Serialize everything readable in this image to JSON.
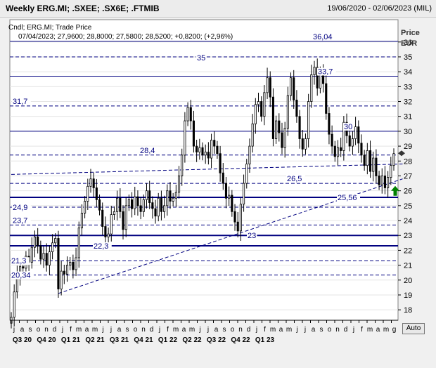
{
  "window": {
    "title": "Weekly ERG.MI; .SXEE; .SX6E; .FTMIB",
    "date_range": "19/06/2020 - 02/06/2023 (MIL)",
    "auto_label": "Auto"
  },
  "legend": {
    "line1": "Cndl; ERG.MI; Trade Price",
    "line2": "07/04/2023; 27,9600; 28,8000; 27,5800; 28,5200; +0,8200; (+2,96%)"
  },
  "colors": {
    "background": "#ffffff",
    "frame": "#f0f0f0",
    "price_line": "#000080",
    "candle": "#000000",
    "arrow": "#008000"
  },
  "chart_data": {
    "type": "candlestick",
    "ylabel": "Price\nEUR",
    "ylim": [
      17.3,
      37.5
    ],
    "yticks": [
      18,
      19,
      20,
      21,
      22,
      23,
      24,
      25,
      26,
      27,
      28,
      29,
      30,
      31,
      32,
      33,
      34,
      35,
      36
    ],
    "last_price": 28.52,
    "x_month_letters": [
      "j",
      "a",
      "s",
      "o",
      "n",
      "d",
      "j",
      "f",
      "m",
      "a",
      "m",
      "j",
      "j",
      "a",
      "s",
      "o",
      "n",
      "d",
      "j",
      "f",
      "m",
      "a",
      "m",
      "j",
      "j",
      "a",
      "s",
      "o",
      "n",
      "d",
      "j",
      "f",
      "m",
      "a",
      "m",
      "j",
      "j",
      "a",
      "s",
      "o",
      "n",
      "d",
      "j",
      "f",
      "m",
      "a",
      "m",
      "g"
    ],
    "quarters": [
      "Q3 20",
      "Q4 20",
      "Q1 21",
      "Q2 21",
      "Q3 21",
      "Q4 21",
      "Q1 22",
      "Q2 22",
      "Q3 22",
      "Q4 22",
      "Q1 23"
    ],
    "close": [
      17.5,
      19.2,
      20.3,
      20.9,
      20.8,
      21.6,
      21.2,
      22.2,
      22.9,
      22.3,
      21.4,
      21.8,
      21.0,
      21.9,
      22.5,
      22.8,
      19.4,
      20.6,
      20.4,
      21.0,
      21.2,
      20.7,
      21.5,
      23.5,
      24.5,
      25.3,
      26.3,
      26.8,
      26.2,
      25.4,
      24.7,
      23.6,
      22.9,
      23.1,
      24.4,
      24.6,
      25.5,
      24.6,
      23.4,
      25.0,
      25.4,
      24.8,
      25.6,
      25.0,
      24.6,
      25.4,
      26.0,
      25.2,
      24.8,
      24.3,
      25.5,
      24.6,
      25.0,
      26.0,
      25.3,
      25.5,
      25.9,
      27.0,
      28.4,
      30.7,
      31.6,
      30.7,
      29.0,
      28.6,
      28.9,
      28.4,
      28.6,
      28.2,
      29.4,
      29.0,
      28.5,
      27.2,
      26.5,
      25.5,
      25.7,
      24.6,
      23.9,
      23.3,
      25.1,
      26.5,
      27.8,
      29.0,
      30.5,
      31.8,
      32.0,
      31.0,
      32.6,
      33.6,
      32.3,
      29.5,
      30.7,
      29.9,
      28.9,
      30.2,
      32.4,
      33.6,
      32.1,
      31.0,
      29.5,
      28.8,
      29.5,
      32.0,
      33.8,
      34.3,
      32.9,
      34.0,
      33.2,
      31.2,
      29.8,
      29.0,
      28.3,
      28.9,
      28.7,
      30.6,
      29.7,
      29.0,
      29.5,
      30.3,
      29.2,
      28.4,
      27.7,
      28.7,
      27.3,
      28.2,
      27.0,
      26.4,
      27.0,
      26.2,
      26.9,
      27.7,
      28.5
    ],
    "annotations": [
      {
        "label": "36,04",
        "value": 36.04
      },
      {
        "label": "35",
        "value": 35.0
      },
      {
        "label": "33,7",
        "value": 33.7
      },
      {
        "label": "31,7",
        "value": 31.7
      },
      {
        "label": "30",
        "value": 30.0
      },
      {
        "label": "28,4",
        "value": 28.4
      },
      {
        "label": "26,5",
        "value": 26.5
      },
      {
        "label": "25,56",
        "value": 25.56
      },
      {
        "label": "24,9",
        "value": 24.9
      },
      {
        "label": "23,7",
        "value": 23.7
      },
      {
        "label": "23",
        "value": 23.0
      },
      {
        "label": "22,3",
        "value": 22.3
      },
      {
        "label": "21,3",
        "value": 21.3
      },
      {
        "label": "20,34",
        "value": 20.34
      }
    ],
    "trendlines": [
      {
        "from_index": 16,
        "from_value": 19.1,
        "to_index": 133,
        "to_value": 26.8
      },
      {
        "from_index": 0,
        "from_value": 27.1,
        "to_index": 133,
        "to_value": 27.8
      }
    ]
  }
}
